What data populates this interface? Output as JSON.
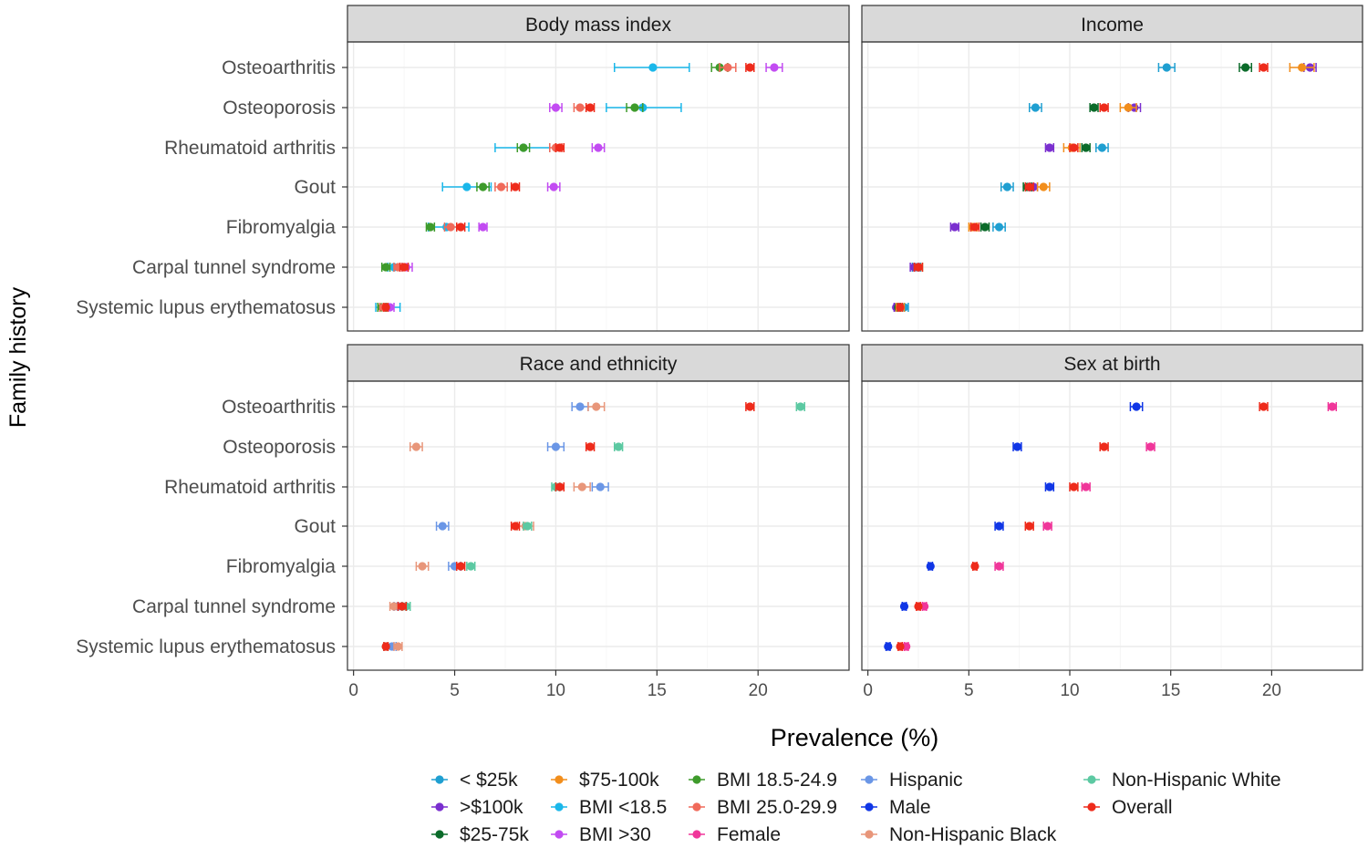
{
  "chart_data": {
    "type": "scatter",
    "xlabel": "Prevalence (%)",
    "ylabel": "Family history",
    "xlim": [
      -0.3,
      24.5
    ],
    "x_ticks": [
      0,
      5,
      10,
      15,
      20
    ],
    "grid": true,
    "legend_position": "bottom",
    "categories": [
      "Osteoarthritis",
      "Osteoporosis",
      "Rheumatoid arthritis",
      "Gout",
      "Fibromyalgia",
      "Carpal tunnel syndrome",
      "Systemic lupus erythematosus"
    ],
    "legend": [
      {
        "key": "lt25k",
        "label": "< $25k",
        "color": "#1f9fd1"
      },
      {
        "key": "gt100k",
        "label": ">$100k",
        "color": "#7a2fcf"
      },
      {
        "key": "25_75k",
        "label": "$25-75k",
        "color": "#0b6b2a"
      },
      {
        "key": "75_100k",
        "label": "$75-100k",
        "color": "#f28e1c"
      },
      {
        "key": "bmi_lt185",
        "label": "BMI <18.5",
        "color": "#1ab7ea"
      },
      {
        "key": "bmi_gt30",
        "label": "BMI >30",
        "color": "#c24bf2"
      },
      {
        "key": "bmi_185_249",
        "label": "BMI 18.5-24.9",
        "color": "#3e9b2b"
      },
      {
        "key": "bmi_25_299",
        "label": "BMI 25.0-29.9",
        "color": "#f06a5a"
      },
      {
        "key": "female",
        "label": "Female",
        "color": "#f0369a"
      },
      {
        "key": "hispanic",
        "label": "Hispanic",
        "color": "#6a96e6"
      },
      {
        "key": "male",
        "label": "Male",
        "color": "#1036e6"
      },
      {
        "key": "nh_black",
        "label": "Non-Hispanic Black",
        "color": "#e8967a"
      },
      {
        "key": "nh_white",
        "label": "Non-Hispanic White",
        "color": "#5cc9a2"
      },
      {
        "key": "overall",
        "label": "Overall",
        "color": "#ee2b1b"
      }
    ],
    "panels": [
      {
        "title": "Body mass index",
        "series": [
          {
            "key": "bmi_lt185",
            "points": [
              [
                14.8,
                12.9,
                16.6
              ],
              [
                14.3,
                12.5,
                16.2
              ],
              [
                8.4,
                7.0,
                9.7
              ],
              [
                5.6,
                4.4,
                6.8
              ],
              [
                4.6,
                3.7,
                5.7
              ],
              [
                2.0,
                1.7,
                2.4
              ],
              [
                1.6,
                1.1,
                2.3
              ]
            ]
          },
          {
            "key": "bmi_gt30",
            "points": [
              [
                20.8,
                20.4,
                21.2
              ],
              [
                10.0,
                9.7,
                10.3
              ],
              [
                12.1,
                11.8,
                12.4
              ],
              [
                9.9,
                9.6,
                10.2
              ],
              [
                6.4,
                6.2,
                6.6
              ],
              [
                2.6,
                2.4,
                2.9
              ],
              [
                1.8,
                1.6,
                2.0
              ]
            ]
          },
          {
            "key": "bmi_185_249",
            "points": [
              [
                18.1,
                17.7,
                18.5
              ],
              [
                13.9,
                13.5,
                14.3
              ],
              [
                8.4,
                8.1,
                8.7
              ],
              [
                6.4,
                6.1,
                6.7
              ],
              [
                3.8,
                3.6,
                4.0
              ],
              [
                1.6,
                1.4,
                1.8
              ],
              [
                1.4,
                1.2,
                1.6
              ]
            ]
          },
          {
            "key": "bmi_25_299",
            "points": [
              [
                18.5,
                18.1,
                18.9
              ],
              [
                11.2,
                10.9,
                11.5
              ],
              [
                10.0,
                9.7,
                10.3
              ],
              [
                7.3,
                7.0,
                7.6
              ],
              [
                4.8,
                4.5,
                5.1
              ],
              [
                2.2,
                2.0,
                2.4
              ],
              [
                1.5,
                1.3,
                1.7
              ]
            ]
          },
          {
            "key": "overall",
            "points": [
              [
                19.6,
                19.4,
                19.8
              ],
              [
                11.7,
                11.5,
                11.9
              ],
              [
                10.2,
                10.0,
                10.4
              ],
              [
                8.0,
                7.8,
                8.2
              ],
              [
                5.3,
                5.1,
                5.5
              ],
              [
                2.5,
                2.3,
                2.7
              ],
              [
                1.6,
                1.5,
                1.7
              ]
            ]
          }
        ]
      },
      {
        "title": "Income",
        "series": [
          {
            "key": "lt25k",
            "points": [
              [
                14.8,
                14.4,
                15.2
              ],
              [
                8.3,
                8.0,
                8.6
              ],
              [
                11.6,
                11.3,
                11.9
              ],
              [
                6.9,
                6.6,
                7.2
              ],
              [
                6.5,
                6.2,
                6.8
              ],
              [
                2.4,
                2.2,
                2.6
              ],
              [
                1.8,
                1.6,
                2.0
              ]
            ]
          },
          {
            "key": "gt100k",
            "points": [
              [
                21.9,
                21.6,
                22.2
              ],
              [
                13.2,
                12.9,
                13.5
              ],
              [
                9.0,
                8.8,
                9.2
              ],
              [
                8.2,
                8.0,
                8.4
              ],
              [
                4.3,
                4.1,
                4.5
              ],
              [
                2.3,
                2.1,
                2.5
              ],
              [
                1.4,
                1.3,
                1.5
              ]
            ]
          },
          {
            "key": "25_75k",
            "points": [
              [
                18.7,
                18.4,
                19.0
              ],
              [
                11.2,
                11.0,
                11.4
              ],
              [
                10.8,
                10.6,
                11.0
              ],
              [
                7.9,
                7.7,
                8.1
              ],
              [
                5.8,
                5.6,
                6.0
              ],
              [
                2.5,
                2.3,
                2.7
              ],
              [
                1.5,
                1.4,
                1.6
              ]
            ]
          },
          {
            "key": "75_100k",
            "points": [
              [
                21.5,
                20.9,
                22.1
              ],
              [
                12.9,
                12.5,
                13.3
              ],
              [
                10.1,
                9.7,
                10.5
              ],
              [
                8.7,
                8.4,
                9.0
              ],
              [
                5.2,
                5.0,
                5.4
              ],
              [
                2.5,
                2.3,
                2.7
              ],
              [
                1.6,
                1.4,
                1.8
              ]
            ]
          },
          {
            "key": "overall",
            "points": [
              [
                19.6,
                19.4,
                19.8
              ],
              [
                11.7,
                11.5,
                11.9
              ],
              [
                10.2,
                10.0,
                10.4
              ],
              [
                8.0,
                7.8,
                8.2
              ],
              [
                5.3,
                5.1,
                5.5
              ],
              [
                2.5,
                2.3,
                2.7
              ],
              [
                1.6,
                1.5,
                1.7
              ]
            ]
          }
        ]
      },
      {
        "title": "Race and ethnicity",
        "series": [
          {
            "key": "hispanic",
            "points": [
              [
                11.2,
                10.8,
                11.6
              ],
              [
                10.0,
                9.6,
                10.4
              ],
              [
                12.2,
                11.8,
                12.6
              ],
              [
                4.4,
                4.1,
                4.7
              ],
              [
                5.0,
                4.7,
                5.3
              ],
              [
                2.2,
                2.0,
                2.4
              ],
              [
                1.9,
                1.7,
                2.1
              ]
            ]
          },
          {
            "key": "nh_black",
            "points": [
              [
                12.0,
                11.6,
                12.4
              ],
              [
                3.1,
                2.8,
                3.4
              ],
              [
                11.3,
                10.9,
                11.7
              ],
              [
                8.5,
                8.1,
                8.9
              ],
              [
                3.4,
                3.1,
                3.7
              ],
              [
                2.0,
                1.8,
                2.2
              ],
              [
                2.2,
                2.0,
                2.4
              ]
            ]
          },
          {
            "key": "nh_white",
            "points": [
              [
                22.1,
                21.9,
                22.3
              ],
              [
                13.1,
                12.9,
                13.3
              ],
              [
                10.0,
                9.8,
                10.2
              ],
              [
                8.6,
                8.4,
                8.8
              ],
              [
                5.8,
                5.6,
                6.0
              ],
              [
                2.6,
                2.4,
                2.8
              ],
              [
                1.6,
                1.5,
                1.7
              ]
            ]
          },
          {
            "key": "overall",
            "points": [
              [
                19.6,
                19.4,
                19.8
              ],
              [
                11.7,
                11.5,
                11.9
              ],
              [
                10.2,
                10.0,
                10.4
              ],
              [
                8.0,
                7.8,
                8.2
              ],
              [
                5.3,
                5.1,
                5.5
              ],
              [
                2.4,
                2.2,
                2.6
              ],
              [
                1.6,
                1.5,
                1.7
              ]
            ]
          }
        ]
      },
      {
        "title": "Sex at birth",
        "series": [
          {
            "key": "male",
            "points": [
              [
                13.3,
                13.0,
                13.6
              ],
              [
                7.4,
                7.2,
                7.6
              ],
              [
                9.0,
                8.8,
                9.2
              ],
              [
                6.5,
                6.3,
                6.7
              ],
              [
                3.1,
                3.0,
                3.2
              ],
              [
                1.8,
                1.7,
                1.9
              ],
              [
                1.0,
                0.9,
                1.1
              ]
            ]
          },
          {
            "key": "female",
            "points": [
              [
                23.0,
                22.8,
                23.2
              ],
              [
                14.0,
                13.8,
                14.2
              ],
              [
                10.8,
                10.6,
                11.0
              ],
              [
                8.9,
                8.7,
                9.1
              ],
              [
                6.5,
                6.3,
                6.7
              ],
              [
                2.8,
                2.7,
                2.9
              ],
              [
                1.9,
                1.8,
                2.0
              ]
            ]
          },
          {
            "key": "overall",
            "points": [
              [
                19.6,
                19.4,
                19.8
              ],
              [
                11.7,
                11.5,
                11.9
              ],
              [
                10.2,
                10.0,
                10.4
              ],
              [
                8.0,
                7.8,
                8.2
              ],
              [
                5.3,
                5.2,
                5.4
              ],
              [
                2.5,
                2.4,
                2.6
              ],
              [
                1.6,
                1.5,
                1.7
              ]
            ]
          }
        ]
      }
    ]
  }
}
